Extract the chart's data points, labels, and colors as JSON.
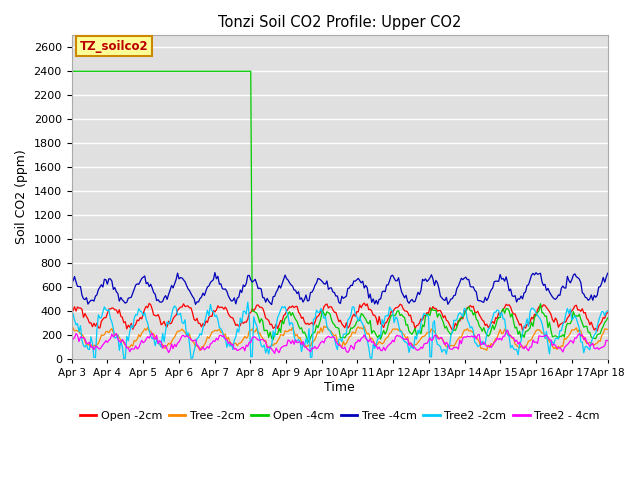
{
  "title": "Tonzi Soil CO2 Profile: Upper CO2",
  "ylabel": "Soil CO2 (ppm)",
  "xlabel": "Time",
  "legend_label": "TZ_soilco2",
  "ylim": [
    0,
    2700
  ],
  "yticks": [
    0,
    200,
    400,
    600,
    800,
    1000,
    1200,
    1400,
    1600,
    1800,
    2000,
    2200,
    2400,
    2600
  ],
  "series": [
    {
      "label": "Open -2cm",
      "color": "#ff0000"
    },
    {
      "label": "Tree -2cm",
      "color": "#ff8800"
    },
    {
      "label": "Open -4cm",
      "color": "#00cc00"
    },
    {
      "label": "Tree -4cm",
      "color": "#0000bb"
    },
    {
      "label": "Tree2 -2cm",
      "color": "#00ccff"
    },
    {
      "label": "Tree2 - 4cm",
      "color": "#ff00ff"
    }
  ],
  "background_color": "#e0e0e0",
  "grid_color": "#ffffff",
  "x_labels": [
    "Apr 3",
    "Apr 4",
    "Apr 5",
    "Apr 6",
    "Apr 7",
    "Apr 8",
    "Apr 9",
    "Apr 10",
    "Apr 11",
    "Apr 12",
    "Apr 13",
    "Apr 14",
    "Apr 15",
    "Apr 16",
    "Apr 17",
    "Apr 18"
  ],
  "figsize": [
    6.4,
    4.8
  ],
  "dpi": 100
}
